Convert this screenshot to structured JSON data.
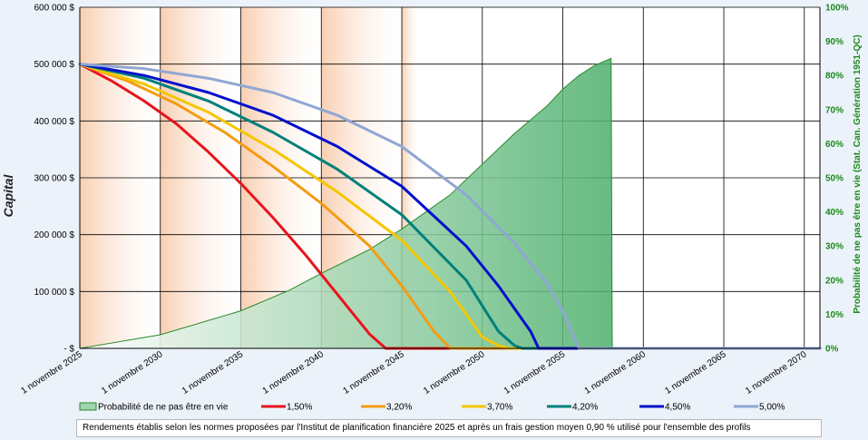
{
  "chart_data": {
    "type": "line",
    "x_axis": {
      "min_year": 2025.83,
      "max_year": 2071.8,
      "tick_years": [
        2025.83,
        2030.83,
        2035.83,
        2040.83,
        2045.83,
        2050.83,
        2055.83,
        2060.83,
        2065.83,
        2070.83
      ],
      "tick_labels": [
        "1 novembre 2025",
        "1 novembre 2030",
        "1 novembre 2035",
        "1 novembre 2040",
        "1 novembre 2045",
        "1 novembre 2050",
        "1 novembre 2055",
        "1 novembre 2060",
        "1 novembre 2065",
        "1 novembre 2070"
      ]
    },
    "y_left": {
      "title": "Capital",
      "min": 0,
      "max": 600000,
      "ticks": [
        0,
        100000,
        200000,
        300000,
        400000,
        500000,
        600000
      ],
      "tick_labels": [
        "-  $",
        "100 000  $",
        "200 000  $",
        "300 000  $",
        "400 000  $",
        "500 000  $",
        "600 000  $"
      ]
    },
    "y_right": {
      "title": "Probabilité de ne pas être en vie (Stat. Can. Génération 1951-QC)",
      "min": 0,
      "max": 1,
      "ticks": [
        0,
        0.1,
        0.2,
        0.3,
        0.4,
        0.5,
        0.6,
        0.7,
        0.8,
        0.9,
        1.0
      ],
      "tick_labels": [
        "0%",
        "10%",
        "20%",
        "30%",
        "40%",
        "50%",
        "60%",
        "70%",
        "80%",
        "90%",
        "100%"
      ]
    },
    "shading": {
      "start_year": 2025.83,
      "end_year": 2046.83,
      "band_years": 5,
      "color": "#f7c9a8"
    },
    "area_series": {
      "name": "Probabilité de ne pas être en vie",
      "color_line": "#2a8a2a",
      "color_fill": "#4caf6c",
      "x": [
        2025.83,
        2030.83,
        2035.83,
        2038.83,
        2040.83,
        2043.83,
        2045.83,
        2048.83,
        2050.83,
        2052.83,
        2054.83,
        2055.83,
        2056.83,
        2057.83,
        2058.83,
        2058.9
      ],
      "y": [
        0.0,
        0.04,
        0.11,
        0.17,
        0.22,
        0.29,
        0.35,
        0.45,
        0.54,
        0.63,
        0.71,
        0.76,
        0.8,
        0.83,
        0.85,
        0.0
      ]
    },
    "series": [
      {
        "name": "1,50%",
        "color": "#e8141c",
        "x": [
          2025.83,
          2027.83,
          2029.83,
          2031.83,
          2033.83,
          2035.83,
          2037.83,
          2039.83,
          2041.83,
          2043.83,
          2044.83,
          2045.83,
          2071.8
        ],
        "y": [
          500000,
          470000,
          435000,
          395000,
          345000,
          290000,
          230000,
          165000,
          95000,
          25000,
          0,
          0,
          0
        ]
      },
      {
        "name": "3,20%",
        "color": "#f39c12",
        "x": [
          2025.83,
          2028.83,
          2031.83,
          2034.83,
          2037.83,
          2040.83,
          2043.83,
          2045.83,
          2047.83,
          2048.83,
          2071.8
        ],
        "y": [
          500000,
          470000,
          430000,
          380000,
          320000,
          255000,
          180000,
          110000,
          30000,
          0,
          0
        ]
      },
      {
        "name": "3,70%",
        "color": "#f5c600",
        "x": [
          2025.83,
          2029.83,
          2033.83,
          2037.83,
          2041.83,
          2045.83,
          2048.83,
          2050.83,
          2051.83,
          2052.5,
          2071.8
        ],
        "y": [
          500000,
          465000,
          415000,
          350000,
          275000,
          190000,
          100000,
          20000,
          5000,
          0,
          0
        ]
      },
      {
        "name": "4,20%",
        "color": "#00807a",
        "x": [
          2025.83,
          2029.83,
          2033.83,
          2037.83,
          2041.83,
          2045.83,
          2049.83,
          2051.83,
          2052.83,
          2053.33,
          2071.8
        ],
        "y": [
          500000,
          475000,
          435000,
          380000,
          315000,
          235000,
          120000,
          30000,
          5000,
          0,
          0
        ]
      },
      {
        "name": "4,50%",
        "color": "#0010cc",
        "x": [
          2025.83,
          2029.83,
          2033.83,
          2037.83,
          2041.83,
          2045.83,
          2049.83,
          2051.83,
          2052.83,
          2053.83,
          2054.33,
          2071.8
        ],
        "y": [
          500000,
          480000,
          450000,
          410000,
          355000,
          285000,
          180000,
          110000,
          70000,
          30000,
          0,
          0
        ]
      },
      {
        "name": "5,00%",
        "color": "#8fa7d4",
        "x": [
          2025.83,
          2029.83,
          2033.83,
          2037.83,
          2041.83,
          2045.83,
          2049.83,
          2052.83,
          2054.83,
          2055.83,
          2056.83,
          2071.8
        ],
        "y": [
          500000,
          492000,
          475000,
          450000,
          410000,
          355000,
          270000,
          185000,
          115000,
          65000,
          0,
          0
        ]
      }
    ]
  },
  "footnote": "Rendements établis selon les normes proposées par l'Institut de planification financière 2025 et après un frais gestion moyen 0,90 % utilisé pour l'ensemble des profils"
}
